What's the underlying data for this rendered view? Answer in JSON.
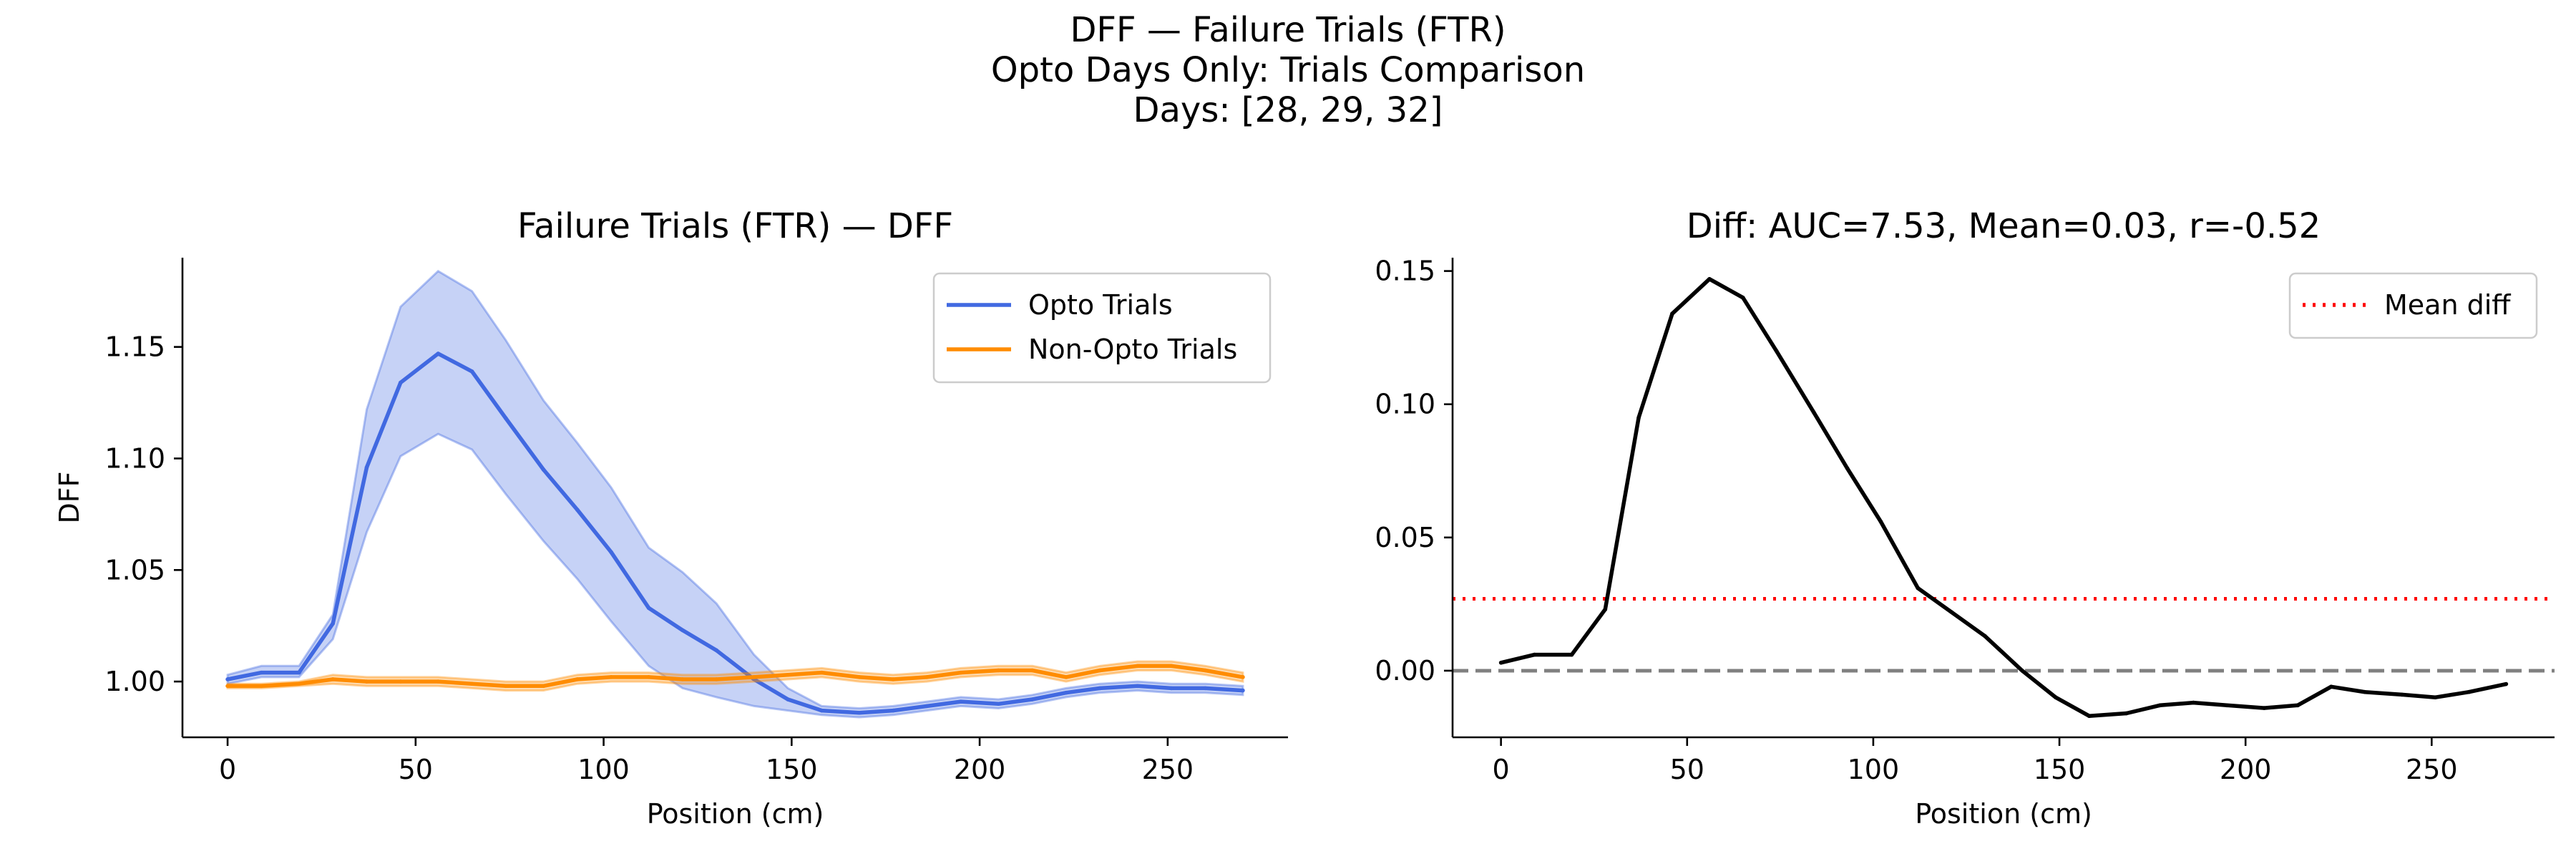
{
  "figure": {
    "suptitle_lines": [
      "DFF — Failure Trials (FTR)",
      "Opto Days Only: Trials Comparison",
      "Days: [28, 29, 32]"
    ]
  },
  "chart_data": [
    {
      "type": "line",
      "title": "Failure Trials (FTR) — DFF",
      "xlabel": "Position (cm)",
      "ylabel": "DFF",
      "xlim": [
        -12,
        282
      ],
      "ylim": [
        0.975,
        1.19
      ],
      "xticks": [
        0,
        50,
        100,
        150,
        200,
        250
      ],
      "xtick_labels": [
        "0",
        "50",
        "100",
        "150",
        "200",
        "250"
      ],
      "yticks": [
        1.0,
        1.05,
        1.1,
        1.15
      ],
      "ytick_labels": [
        "1.00",
        "1.05",
        "1.10",
        "1.15"
      ],
      "grid": false,
      "legend_position": "top-right",
      "x": [
        0,
        9,
        19,
        28,
        37,
        46,
        56,
        65,
        74,
        84,
        93,
        102,
        112,
        121,
        130,
        140,
        149,
        158,
        168,
        177,
        186,
        195,
        205,
        214,
        223,
        232,
        242,
        251,
        260,
        270
      ],
      "series": [
        {
          "name": "Opto Trials",
          "color": "#4169e1",
          "values": [
            1.001,
            1.004,
            1.004,
            1.026,
            1.096,
            1.134,
            1.147,
            1.139,
            1.118,
            1.095,
            1.077,
            1.058,
            1.033,
            1.023,
            1.014,
            1.001,
            0.992,
            0.987,
            0.986,
            0.987,
            0.989,
            0.991,
            0.99,
            0.992,
            0.995,
            0.997,
            0.998,
            0.997,
            0.997,
            0.996
          ],
          "lower": [
            0.999,
            1.002,
            1.002,
            1.019,
            1.067,
            1.101,
            1.111,
            1.104,
            1.084,
            1.063,
            1.046,
            1.027,
            1.007,
            0.997,
            0.993,
            0.989,
            0.987,
            0.985,
            0.984,
            0.985,
            0.987,
            0.989,
            0.988,
            0.99,
            0.993,
            0.995,
            0.996,
            0.995,
            0.995,
            0.994
          ],
          "upper": [
            1.003,
            1.007,
            1.007,
            1.03,
            1.122,
            1.168,
            1.184,
            1.175,
            1.153,
            1.126,
            1.107,
            1.087,
            1.06,
            1.049,
            1.035,
            1.012,
            0.997,
            0.989,
            0.988,
            0.989,
            0.991,
            0.993,
            0.992,
            0.994,
            0.997,
            0.999,
            1.0,
            0.999,
            0.999,
            0.998
          ]
        },
        {
          "name": "Non-Opto Trials",
          "color": "#ff8c00",
          "values": [
            0.998,
            0.998,
            0.999,
            1.001,
            1.0,
            1.0,
            1.0,
            0.999,
            0.998,
            0.998,
            1.001,
            1.002,
            1.002,
            1.001,
            1.001,
            1.002,
            1.003,
            1.004,
            1.002,
            1.001,
            1.002,
            1.004,
            1.005,
            1.005,
            1.002,
            1.005,
            1.007,
            1.007,
            1.005,
            1.002
          ],
          "lower": [
            0.997,
            0.997,
            0.998,
            0.999,
            0.998,
            0.998,
            0.998,
            0.997,
            0.996,
            0.996,
            0.999,
            1.0,
            1.0,
            0.999,
            0.999,
            1.0,
            1.001,
            1.002,
            1.0,
            0.999,
            1.0,
            1.002,
            1.003,
            1.003,
            1.0,
            1.003,
            1.005,
            1.005,
            1.003,
            1.0
          ],
          "upper": [
            0.999,
            0.999,
            1.0,
            1.003,
            1.002,
            1.002,
            1.002,
            1.001,
            1.0,
            1.0,
            1.003,
            1.004,
            1.004,
            1.003,
            1.003,
            1.004,
            1.005,
            1.006,
            1.004,
            1.003,
            1.004,
            1.006,
            1.007,
            1.007,
            1.004,
            1.007,
            1.009,
            1.009,
            1.007,
            1.004
          ]
        }
      ]
    },
    {
      "type": "line",
      "title": "Diff: AUC=7.53, Mean=0.03, r=-0.52",
      "xlabel": "Position (cm)",
      "ylabel": "",
      "xlim": [
        -13,
        283
      ],
      "ylim": [
        -0.025,
        0.155
      ],
      "xticks": [
        0,
        50,
        100,
        150,
        200,
        250
      ],
      "xtick_labels": [
        "0",
        "50",
        "100",
        "150",
        "200",
        "250"
      ],
      "yticks": [
        0.0,
        0.05,
        0.1,
        0.15
      ],
      "ytick_labels": [
        "0.00",
        "0.05",
        "0.10",
        "0.15"
      ],
      "grid": false,
      "legend_position": "top-right",
      "x": [
        0,
        9,
        19,
        28,
        37,
        46,
        56,
        65,
        74,
        84,
        93,
        102,
        112,
        121,
        130,
        140,
        149,
        158,
        168,
        177,
        186,
        195,
        205,
        214,
        223,
        232,
        242,
        251,
        260,
        270
      ],
      "series": [
        {
          "color": "#000000",
          "values": [
            0.003,
            0.006,
            0.006,
            0.023,
            0.095,
            0.134,
            0.147,
            0.14,
            0.12,
            0.097,
            0.076,
            0.056,
            0.031,
            0.022,
            0.013,
            0.0,
            -0.01,
            -0.017,
            -0.016,
            -0.013,
            -0.012,
            -0.013,
            -0.014,
            -0.013,
            -0.006,
            -0.008,
            -0.009,
            -0.01,
            -0.008,
            -0.005
          ]
        }
      ],
      "reference_lines": [
        {
          "name": "Mean diff",
          "y": 0.027,
          "color": "#ff0000",
          "style": "dotted"
        },
        {
          "y": 0.0,
          "color": "#808080",
          "style": "dashed"
        }
      ]
    }
  ]
}
